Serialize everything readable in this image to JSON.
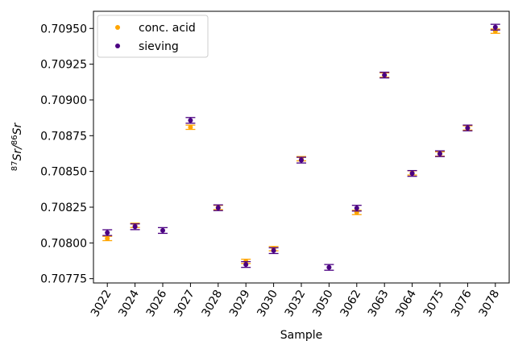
{
  "chart_data": {
    "type": "scatter",
    "xlabel": "Sample",
    "ylabel_parts": {
      "sup1": "87",
      "base1": "Sr/",
      "sup2": "86",
      "base2": "Sr"
    },
    "categories": [
      "3022",
      "3024",
      "3026",
      "3027",
      "3028",
      "3029",
      "3030",
      "3032",
      "3050",
      "3062",
      "3063",
      "3064",
      "3075",
      "3076",
      "3078"
    ],
    "ylim": [
      0.70772,
      0.70962
    ],
    "yticks": [
      "0.70775",
      "0.70800",
      "0.70825",
      "0.70850",
      "0.70875",
      "0.70900",
      "0.70925",
      "0.70950"
    ],
    "ytick_values": [
      0.70775,
      0.708,
      0.70825,
      0.7085,
      0.70875,
      0.709,
      0.70925,
      0.7095
    ],
    "legend_position": "upper-left",
    "series": [
      {
        "name": "conc. acid",
        "color": "#FFA500",
        "values": [
          0.708031,
          0.708123,
          null,
          0.708809,
          0.708248,
          0.707871,
          0.70796,
          0.708589,
          null,
          0.708213,
          0.709174,
          0.70849,
          0.708622,
          0.708804,
          0.709481
        ],
        "errors": [
          1.5e-05,
          1.5e-05,
          null,
          1.5e-05,
          1.5e-05,
          1.5e-05,
          1.5e-05,
          1.5e-05,
          null,
          1.5e-05,
          1.5e-05,
          1.5e-05,
          1.5e-05,
          1.5e-05,
          1.5e-05
        ]
      },
      {
        "name": "sieving",
        "color": "#4B0082",
        "values": [
          0.708072,
          0.708113,
          0.708087,
          0.708857,
          0.708246,
          0.707849,
          0.707946,
          0.708579,
          0.707829,
          0.708243,
          0.709174,
          0.708486,
          0.708624,
          0.708804,
          0.709509
        ],
        "errors": [
          2e-05,
          2e-05,
          2e-05,
          2e-05,
          2e-05,
          2e-05,
          2e-05,
          2e-05,
          2e-05,
          2e-05,
          2e-05,
          2e-05,
          2e-05,
          2e-05,
          2e-05
        ]
      }
    ]
  }
}
